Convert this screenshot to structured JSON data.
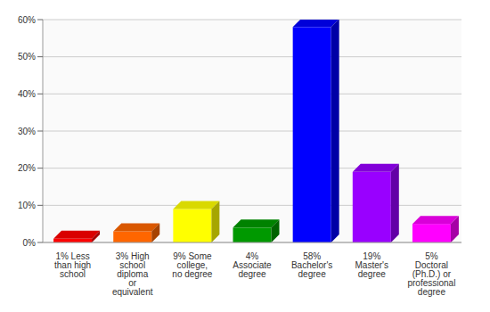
{
  "chart_data": {
    "type": "bar",
    "categories": [
      "1% Less than high school",
      "3% High school diploma or equivalent",
      "9% Some college, no degree",
      "4% Associate degree",
      "58% Bachelor's degree",
      "19% Master's degree",
      "5% Doctoral (Ph.D.) or professional degree"
    ],
    "values": [
      1,
      3,
      9,
      4,
      58,
      19,
      5
    ],
    "colors": [
      "#ff0000",
      "#ff6600",
      "#ffff00",
      "#009900",
      "#0000ff",
      "#9900ff",
      "#ff00ff"
    ],
    "ylim": [
      0,
      60
    ],
    "yticks": [
      {
        "value": 0,
        "label": "0%"
      },
      {
        "value": 10,
        "label": "10%"
      },
      {
        "value": 20,
        "label": "20%"
      },
      {
        "value": 30,
        "label": "30%"
      },
      {
        "value": 40,
        "label": "40%"
      },
      {
        "value": 50,
        "label": "50%"
      },
      {
        "value": 60,
        "label": "60%"
      }
    ],
    "grid": true
  }
}
